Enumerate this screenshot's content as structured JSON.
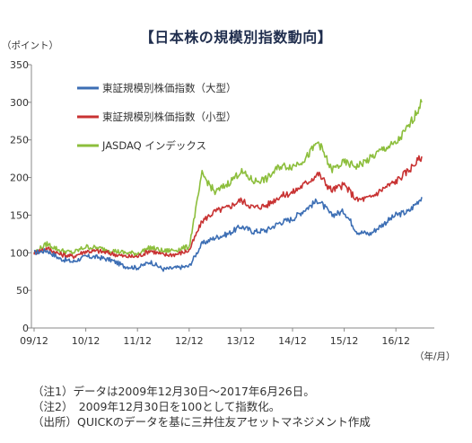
{
  "chart_data": {
    "type": "line",
    "title": "【日本株の規模別指数動向】",
    "ylabel": "（ポイント）",
    "xlabel": "（年/月）",
    "ylim": [
      0,
      350
    ],
    "yticks": [
      0,
      50,
      100,
      150,
      200,
      250,
      300,
      350
    ],
    "xticks": [
      "09/12",
      "10/12",
      "11/12",
      "12/12",
      "13/12",
      "14/12",
      "15/12",
      "16/12"
    ],
    "grid": false,
    "legend_position": "top-left",
    "x": [
      "09/12",
      "10/03",
      "10/06",
      "10/09",
      "10/12",
      "11/03",
      "11/06",
      "11/09",
      "11/12",
      "12/03",
      "12/06",
      "12/09",
      "12/12",
      "13/03",
      "13/06",
      "13/09",
      "13/12",
      "14/03",
      "14/06",
      "14/09",
      "14/12",
      "15/03",
      "15/06",
      "15/09",
      "15/12",
      "16/03",
      "16/06",
      "16/09",
      "16/12",
      "17/03",
      "17/06"
    ],
    "series": [
      {
        "name": "東証規模別株価指数（大型）",
        "color": "#3c6eb4",
        "values": [
          100,
          103,
          92,
          88,
          95,
          94,
          90,
          82,
          80,
          88,
          78,
          80,
          82,
          112,
          120,
          125,
          135,
          128,
          130,
          140,
          145,
          158,
          170,
          150,
          155,
          128,
          125,
          138,
          150,
          155,
          174
        ]
      },
      {
        "name": "東証規模別株価指数（小型）",
        "color": "#c83232",
        "values": [
          100,
          106,
          98,
          95,
          102,
          102,
          99,
          95,
          95,
          103,
          97,
          98,
          103,
          142,
          155,
          160,
          170,
          160,
          163,
          175,
          180,
          192,
          205,
          183,
          190,
          170,
          173,
          185,
          195,
          210,
          228
        ]
      },
      {
        "name": "JASDAQ インデックス",
        "color": "#8cbe3c",
        "values": [
          100,
          112,
          103,
          100,
          108,
          106,
          103,
          100,
          99,
          107,
          102,
          104,
          108,
          205,
          180,
          192,
          208,
          195,
          198,
          215,
          215,
          225,
          248,
          210,
          220,
          215,
          225,
          238,
          245,
          268,
          300
        ]
      }
    ]
  },
  "notes": [
    "（注1）データは2009年12月30日～2017年6月26日。",
    "（注2）　2009年12月30日を100として指数化。",
    "（出所）QUICKのデータを基に三井住友アセットマネジメント作成"
  ]
}
